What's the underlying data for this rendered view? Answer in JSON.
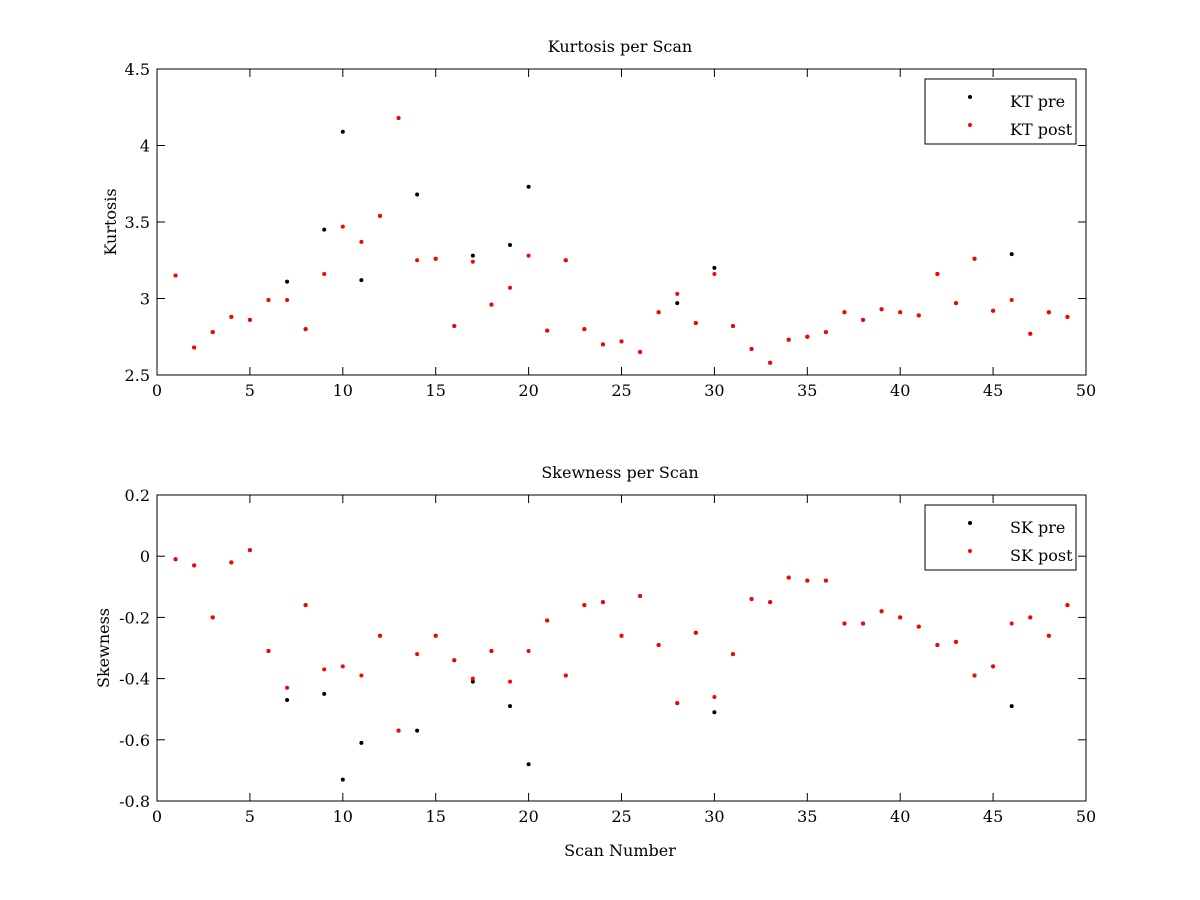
{
  "colors": {
    "pre": "#000000",
    "post": "#ff0000",
    "axis": "#000000",
    "background": "#ffffff"
  },
  "chart_data": [
    {
      "type": "scatter",
      "title": "Kurtosis per Scan",
      "xlabel": "",
      "ylabel": "Kurtosis",
      "xlim": [
        0,
        50
      ],
      "ylim": [
        2.5,
        4.5
      ],
      "xticks": [
        "0",
        "5",
        "10",
        "15",
        "20",
        "25",
        "30",
        "35",
        "40",
        "45",
        "50"
      ],
      "yticks": [
        "2.5",
        "3",
        "3.5",
        "4",
        "4.5"
      ],
      "grid": false,
      "legend_position": "top-right",
      "series": [
        {
          "name": "KT pre",
          "color": "#000000",
          "x": [
            1,
            2,
            3,
            4,
            5,
            6,
            7,
            8,
            9,
            10,
            11,
            12,
            13,
            14,
            15,
            16,
            17,
            18,
            19,
            20,
            21,
            22,
            23,
            24,
            25,
            26,
            27,
            28,
            29,
            30,
            31,
            32,
            33,
            34,
            35,
            36,
            37,
            38,
            39,
            40,
            41,
            42,
            43,
            44,
            45,
            46,
            47,
            48,
            49
          ],
          "y": [
            3.15,
            2.68,
            2.78,
            2.88,
            2.86,
            2.99,
            3.11,
            2.8,
            3.45,
            4.09,
            3.12,
            3.54,
            4.18,
            3.68,
            3.26,
            2.82,
            3.28,
            2.96,
            3.35,
            3.73,
            2.79,
            3.25,
            2.8,
            2.7,
            2.72,
            2.65,
            2.91,
            2.97,
            2.84,
            3.2,
            2.82,
            2.67,
            2.58,
            2.73,
            2.75,
            2.78,
            2.91,
            2.86,
            2.93,
            2.91,
            2.89,
            3.16,
            2.97,
            3.26,
            2.92,
            3.29,
            2.77,
            2.91,
            2.88
          ]
        },
        {
          "name": "KT post",
          "color": "#ff0000",
          "x": [
            1,
            2,
            3,
            4,
            5,
            6,
            7,
            8,
            9,
            10,
            11,
            12,
            13,
            14,
            15,
            16,
            17,
            18,
            19,
            20,
            21,
            22,
            23,
            24,
            25,
            26,
            27,
            28,
            29,
            30,
            31,
            32,
            33,
            34,
            35,
            36,
            37,
            38,
            39,
            40,
            41,
            42,
            43,
            44,
            45,
            46,
            47,
            48,
            49
          ],
          "y": [
            3.15,
            2.68,
            2.78,
            2.88,
            2.86,
            2.99,
            2.99,
            2.8,
            3.16,
            3.47,
            3.37,
            3.54,
            4.18,
            3.25,
            3.26,
            2.82,
            3.24,
            2.96,
            3.07,
            3.28,
            2.79,
            3.25,
            2.8,
            2.7,
            2.72,
            2.65,
            2.91,
            3.03,
            2.84,
            3.16,
            2.82,
            2.67,
            2.58,
            2.73,
            2.75,
            2.78,
            2.91,
            2.86,
            2.93,
            2.91,
            2.89,
            3.16,
            2.97,
            3.26,
            2.92,
            2.99,
            2.77,
            2.91,
            2.88
          ]
        }
      ]
    },
    {
      "type": "scatter",
      "title": "Skewness per Scan",
      "xlabel": "Scan Number",
      "ylabel": "Skewness",
      "xlim": [
        0,
        50
      ],
      "ylim": [
        -0.8,
        0.2
      ],
      "xticks": [
        "0",
        "5",
        "10",
        "15",
        "20",
        "25",
        "30",
        "35",
        "40",
        "45",
        "50"
      ],
      "yticks": [
        "-0.8",
        "-0.6",
        "-0.4",
        "-0.2",
        "0",
        "0.2"
      ],
      "grid": false,
      "legend_position": "top-right",
      "series": [
        {
          "name": "SK pre",
          "color": "#000000",
          "x": [
            1,
            2,
            3,
            4,
            5,
            6,
            7,
            8,
            9,
            10,
            11,
            12,
            13,
            14,
            15,
            16,
            17,
            18,
            19,
            20,
            21,
            22,
            23,
            24,
            25,
            26,
            27,
            28,
            29,
            30,
            31,
            32,
            33,
            34,
            35,
            36,
            37,
            38,
            39,
            40,
            41,
            42,
            43,
            44,
            45,
            46,
            47,
            48,
            49
          ],
          "y": [
            -0.01,
            -0.03,
            -0.2,
            -0.02,
            0.02,
            -0.31,
            -0.47,
            -0.16,
            -0.45,
            -0.73,
            -0.61,
            -0.26,
            -0.57,
            -0.57,
            -0.26,
            -0.34,
            -0.41,
            -0.31,
            -0.49,
            -0.68,
            -0.21,
            -0.39,
            -0.16,
            -0.15,
            -0.26,
            -0.13,
            -0.29,
            -0.48,
            -0.25,
            -0.51,
            -0.32,
            -0.14,
            -0.15,
            -0.07,
            -0.08,
            -0.08,
            -0.22,
            -0.22,
            -0.18,
            -0.2,
            -0.23,
            -0.29,
            -0.28,
            -0.39,
            -0.36,
            -0.49,
            -0.2,
            -0.26,
            -0.16
          ]
        },
        {
          "name": "SK post",
          "color": "#ff0000",
          "x": [
            1,
            2,
            3,
            4,
            5,
            6,
            7,
            8,
            9,
            10,
            11,
            12,
            13,
            14,
            15,
            16,
            17,
            18,
            19,
            20,
            21,
            22,
            23,
            24,
            25,
            26,
            27,
            28,
            29,
            30,
            31,
            32,
            33,
            34,
            35,
            36,
            37,
            38,
            39,
            40,
            41,
            42,
            43,
            44,
            45,
            46,
            47,
            48,
            49
          ],
          "y": [
            -0.01,
            -0.03,
            -0.2,
            -0.02,
            0.02,
            -0.31,
            -0.43,
            -0.16,
            -0.37,
            -0.36,
            -0.39,
            -0.26,
            -0.57,
            -0.32,
            -0.26,
            -0.34,
            -0.4,
            -0.31,
            -0.41,
            -0.31,
            -0.21,
            -0.39,
            -0.16,
            -0.15,
            -0.26,
            -0.13,
            -0.29,
            -0.48,
            -0.25,
            -0.46,
            -0.32,
            -0.14,
            -0.15,
            -0.07,
            -0.08,
            -0.08,
            -0.22,
            -0.22,
            -0.18,
            -0.2,
            -0.23,
            -0.29,
            -0.28,
            -0.39,
            -0.36,
            -0.22,
            -0.2,
            -0.26,
            -0.16
          ]
        }
      ]
    }
  ]
}
